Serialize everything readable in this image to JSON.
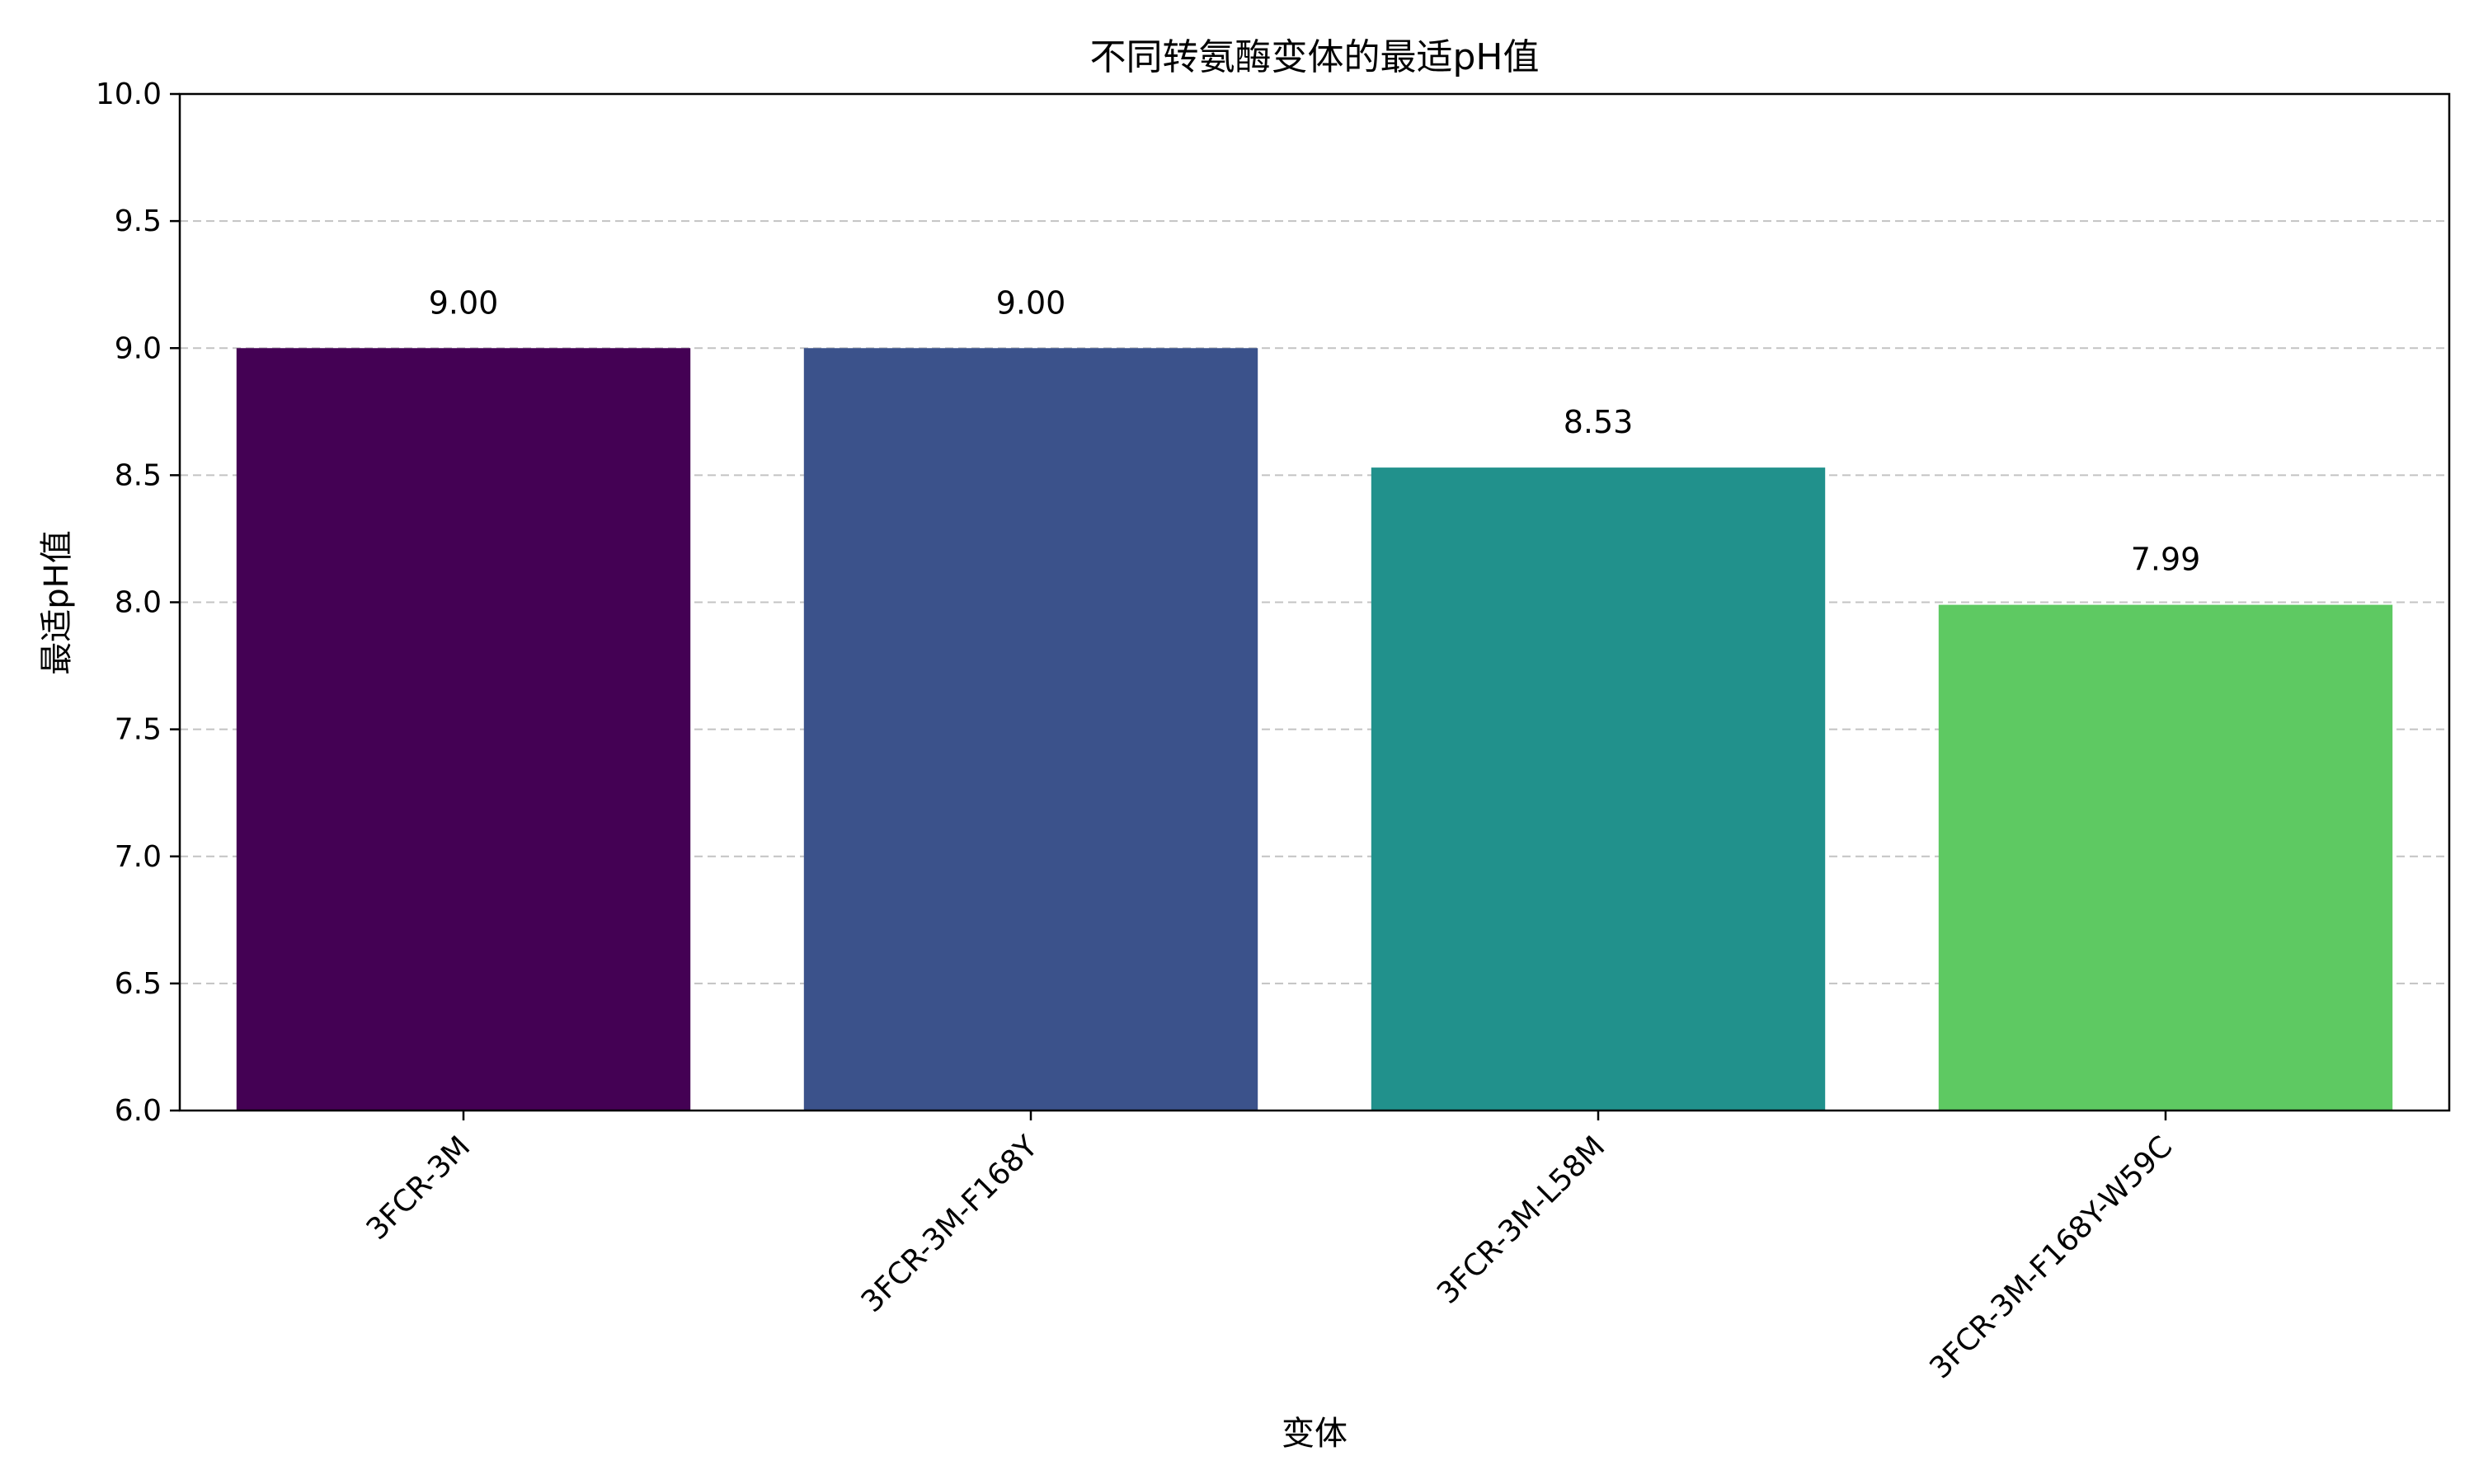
{
  "chart_data": {
    "type": "bar",
    "title": "不同转氨酶变体的最适pH值",
    "xlabel": "变体",
    "ylabel": "最适pH值",
    "categories": [
      "3FCR-3M",
      "3FCR-3M-F168Y",
      "3FCR-3M-L58M",
      "3FCR-3M-F168Y-W59C"
    ],
    "values": [
      9.0,
      9.0,
      8.53,
      7.99
    ],
    "value_labels": [
      "9.00",
      "9.00",
      "8.53",
      "7.99"
    ],
    "bar_colors": [
      "#440154",
      "#3b528b",
      "#21918c",
      "#5ec962"
    ],
    "ylim": [
      6.0,
      10.0
    ],
    "yticks": [
      6.0,
      6.5,
      7.0,
      7.5,
      8.0,
      8.5,
      9.0,
      9.5,
      10.0
    ],
    "ytick_labels": [
      "6.0",
      "6.5",
      "7.0",
      "7.5",
      "8.0",
      "8.5",
      "9.0",
      "9.5",
      "10.0"
    ],
    "grid": "y-dashed",
    "legend": "none"
  }
}
